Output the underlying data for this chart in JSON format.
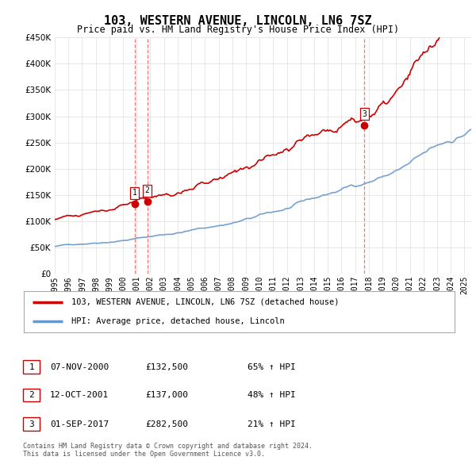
{
  "title": "103, WESTERN AVENUE, LINCOLN, LN6 7SZ",
  "subtitle": "Price paid vs. HM Land Registry's House Price Index (HPI)",
  "ytick_values": [
    0,
    50000,
    100000,
    150000,
    200000,
    250000,
    300000,
    350000,
    400000,
    450000
  ],
  "ylim": [
    0,
    450000
  ],
  "xlim_start": 1995.0,
  "xlim_end": 2025.5,
  "xtick_years": [
    1995,
    1996,
    1997,
    1998,
    1999,
    2000,
    2001,
    2002,
    2003,
    2004,
    2005,
    2006,
    2007,
    2008,
    2009,
    2010,
    2011,
    2012,
    2013,
    2014,
    2015,
    2016,
    2017,
    2018,
    2019,
    2020,
    2021,
    2022,
    2023,
    2024,
    2025
  ],
  "sale_dates": [
    2000.85,
    2001.78,
    2017.67
  ],
  "sale_prices": [
    132500,
    137000,
    282500
  ],
  "sale_labels": [
    "1",
    "2",
    "3"
  ],
  "sale_marker_color": "#cc0000",
  "sale_vline_color": "#ff6666",
  "red_line_color": "#cc0000",
  "blue_line_color": "#6699cc",
  "legend_red_label": "103, WESTERN AVENUE, LINCOLN, LN6 7SZ (detached house)",
  "legend_blue_label": "HPI: Average price, detached house, Lincoln",
  "table_rows": [
    {
      "num": "1",
      "date": "07-NOV-2000",
      "price": "£132,500",
      "pct": "65% ↑ HPI"
    },
    {
      "num": "2",
      "date": "12-OCT-2001",
      "price": "£137,000",
      "pct": "48% ↑ HPI"
    },
    {
      "num": "3",
      "date": "01-SEP-2017",
      "price": "£282,500",
      "pct": "21% ↑ HPI"
    }
  ],
  "footer": "Contains HM Land Registry data © Crown copyright and database right 2024.\nThis data is licensed under the Open Government Licence v3.0.",
  "background_color": "#ffffff",
  "grid_color": "#dddddd"
}
